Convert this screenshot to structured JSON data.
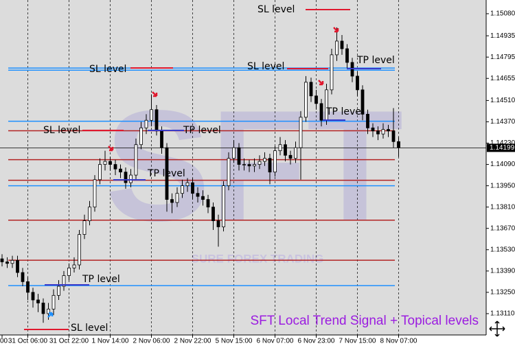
{
  "chart_data": {
    "type": "candlestick",
    "caption": "SFT Local Trend Signal + Topical levels",
    "watermark": "SFT",
    "watermark_subtitle": "SURE FOREX TRADING",
    "categories": [
      "00",
      null,
      null,
      null,
      null,
      "31 Oct 06:00",
      null,
      null,
      null,
      null,
      null,
      null,
      null,
      "31 Oct 22:00",
      null,
      null,
      null,
      null,
      null,
      null,
      null,
      "1 Nov 14:00",
      null,
      null,
      null,
      null,
      null,
      null,
      null,
      "2 Nov 06:00",
      null,
      null,
      null,
      null,
      null,
      null,
      null,
      "2 Nov 22:00",
      null,
      null,
      null,
      null,
      null,
      null,
      null,
      "5 Nov 15:00",
      null,
      null,
      null,
      null,
      null,
      null,
      null,
      "6 Nov 07:00",
      null,
      null,
      null,
      null,
      null,
      null,
      null,
      "6 Nov 23:00",
      null,
      null,
      null,
      null,
      null,
      null,
      null,
      "7 Nov 15:00",
      null,
      null,
      null,
      null,
      null,
      null,
      null,
      "8 Nov 07:00"
    ],
    "open": [
      1.1347,
      1.1345,
      1.1344,
      1.1346,
      1.1338,
      1.1332,
      1.1325,
      1.132,
      1.1318,
      1.1311,
      1.1314,
      1.1323,
      1.1329,
      1.1336,
      1.1341,
      1.1343,
      1.1363,
      1.1372,
      1.1381,
      1.1399,
      1.1409,
      1.1411,
      1.1409,
      1.1406,
      1.1404,
      1.1397,
      1.1402,
      1.1422,
      1.1433,
      1.1438,
      1.1445,
      1.1431,
      1.142,
      1.1386,
      1.1384,
      1.139,
      1.1395,
      1.1397,
      1.139,
      1.1388,
      1.1386,
      1.1381,
      1.1372,
      1.1368,
      1.1395,
      1.1413,
      1.142,
      1.1409,
      1.1409,
      1.1408,
      1.1409,
      1.1411,
      1.1413,
      1.1404,
      1.1418,
      1.1422,
      1.1415,
      1.1413,
      1.142,
      1.144,
      1.1463,
      1.1454,
      1.1449,
      1.1438,
      1.1458,
      1.1481,
      1.149,
      1.1485,
      1.1476,
      1.1467,
      1.1458,
      1.1442,
      1.1433,
      1.1431,
      1.1429,
      1.1432,
      1.1431,
      1.1424
    ],
    "high": [
      1.135,
      1.1348,
      1.1349,
      1.1349,
      1.1341,
      1.1335,
      1.1328,
      1.1324,
      1.1321,
      1.1318,
      1.1327,
      1.1333,
      1.1339,
      1.1344,
      1.1348,
      1.1366,
      1.1376,
      1.1385,
      1.1402,
      1.1413,
      1.1418,
      1.1414,
      1.1412,
      1.1409,
      1.1407,
      1.1406,
      1.1426,
      1.1437,
      1.1442,
      1.1455,
      1.1448,
      1.1434,
      1.1423,
      1.139,
      1.1394,
      1.1399,
      1.14,
      1.14,
      1.1394,
      1.1392,
      1.1389,
      1.1384,
      1.1376,
      1.1398,
      1.1417,
      1.1425,
      1.1423,
      1.1413,
      1.1412,
      1.1413,
      1.1415,
      1.1417,
      1.1416,
      1.1421,
      1.1427,
      1.1425,
      1.1418,
      1.1424,
      1.1444,
      1.1467,
      1.1466,
      1.1458,
      1.1452,
      1.1462,
      1.1485,
      1.1499,
      1.1494,
      1.1488,
      1.1479,
      1.147,
      1.1461,
      1.1445,
      1.1436,
      1.1434,
      1.1436,
      1.1435,
      1.1446,
      1.1427
    ],
    "low": [
      1.1342,
      1.1341,
      1.1341,
      1.1335,
      1.1329,
      1.132,
      1.1315,
      1.1312,
      1.1305,
      1.1307,
      1.131,
      1.132,
      1.1326,
      1.1333,
      1.1338,
      1.134,
      1.136,
      1.1369,
      1.1378,
      1.1396,
      1.1405,
      1.1405,
      1.1402,
      1.14,
      1.1393,
      1.1394,
      1.1399,
      1.1419,
      1.1429,
      1.1434,
      1.1428,
      1.1416,
      1.1378,
      1.1377,
      1.1381,
      1.1387,
      1.1391,
      1.1386,
      1.1384,
      1.1382,
      1.1377,
      1.1366,
      1.1355,
      1.1365,
      1.1392,
      1.141,
      1.1405,
      1.1405,
      1.1404,
      1.1404,
      1.1406,
      1.1408,
      1.1396,
      1.1401,
      1.1415,
      1.1411,
      1.1409,
      1.141,
      1.1399,
      1.1437,
      1.145,
      1.1445,
      1.1434,
      1.1435,
      1.1455,
      1.1477,
      1.1481,
      1.1472,
      1.1463,
      1.1454,
      1.1438,
      1.1429,
      1.1427,
      1.1425,
      1.1426,
      1.1427,
      1.142,
      1.1414
    ],
    "close": [
      1.1345,
      1.1344,
      1.1346,
      1.1338,
      1.1332,
      1.1325,
      1.132,
      1.1318,
      1.1311,
      1.1314,
      1.1323,
      1.1329,
      1.1336,
      1.1341,
      1.1343,
      1.1363,
      1.1372,
      1.1381,
      1.1399,
      1.1409,
      1.1411,
      1.1409,
      1.1406,
      1.1404,
      1.1397,
      1.1402,
      1.1422,
      1.1433,
      1.1438,
      1.1445,
      1.1431,
      1.142,
      1.1386,
      1.1384,
      1.139,
      1.1395,
      1.1397,
      1.139,
      1.1388,
      1.1386,
      1.1381,
      1.1372,
      1.1368,
      1.1395,
      1.1413,
      1.142,
      1.1409,
      1.1409,
      1.1408,
      1.1409,
      1.1411,
      1.1413,
      1.1404,
      1.1418,
      1.1422,
      1.1415,
      1.1413,
      1.142,
      1.144,
      1.1463,
      1.1454,
      1.1449,
      1.1438,
      1.1458,
      1.1481,
      1.149,
      1.1485,
      1.1476,
      1.1467,
      1.1458,
      1.1442,
      1.1433,
      1.1431,
      1.1429,
      1.1432,
      1.1431,
      1.1424,
      1.142
    ],
    "ylim": [
      1.1297,
      1.1517
    ],
    "yticks": [
      {
        "value": 1.1508,
        "label": "1.15080"
      },
      {
        "value": 1.14935,
        "label": "1.14935"
      },
      {
        "value": 1.14795,
        "label": "1.14795"
      },
      {
        "value": 1.14655,
        "label": "1.14655"
      },
      {
        "value": 1.1451,
        "label": "1.14510"
      },
      {
        "value": 1.1437,
        "label": "1.14370"
      },
      {
        "value": 1.1423,
        "label": "1.14230"
      },
      {
        "value": 1.1409,
        "label": "1.14090"
      },
      {
        "value": 1.1395,
        "label": "1.13950"
      },
      {
        "value": 1.1381,
        "label": "1.13810"
      },
      {
        "value": 1.1367,
        "label": "1.13670"
      },
      {
        "value": 1.1353,
        "label": "1.13530"
      },
      {
        "value": 1.1339,
        "label": "1.13390"
      },
      {
        "value": 1.1325,
        "label": "1.13250"
      },
      {
        "value": 1.1311,
        "label": "1.13110"
      }
    ],
    "current_price": {
      "value": 1.14199,
      "label": "1.14199"
    },
    "levels": [
      {
        "value": 1.14723,
        "color": "#1e90ff"
      },
      {
        "value": 1.14709,
        "color": "#1e90ff"
      },
      {
        "value": 1.14374,
        "color": "#1e90ff"
      },
      {
        "value": 1.1395,
        "color": "#1e90ff"
      },
      {
        "value": 1.13294,
        "color": "#1e90ff"
      },
      {
        "value": 1.14311,
        "color": "#b22222"
      },
      {
        "value": 1.14121,
        "color": "#b22222"
      },
      {
        "value": 1.13986,
        "color": "#b22222"
      },
      {
        "value": 1.13724,
        "color": "#b22222"
      },
      {
        "value": 1.13461,
        "color": "#b22222"
      }
    ],
    "annotations": [
      "SL level",
      "SL level",
      "SL level",
      "TP level",
      "TP level",
      "SL level",
      "TP level",
      "TP level",
      "TP level",
      "SL level"
    ],
    "grid": "vertical",
    "up_color": "#ffffff",
    "down_color": "#000000"
  }
}
